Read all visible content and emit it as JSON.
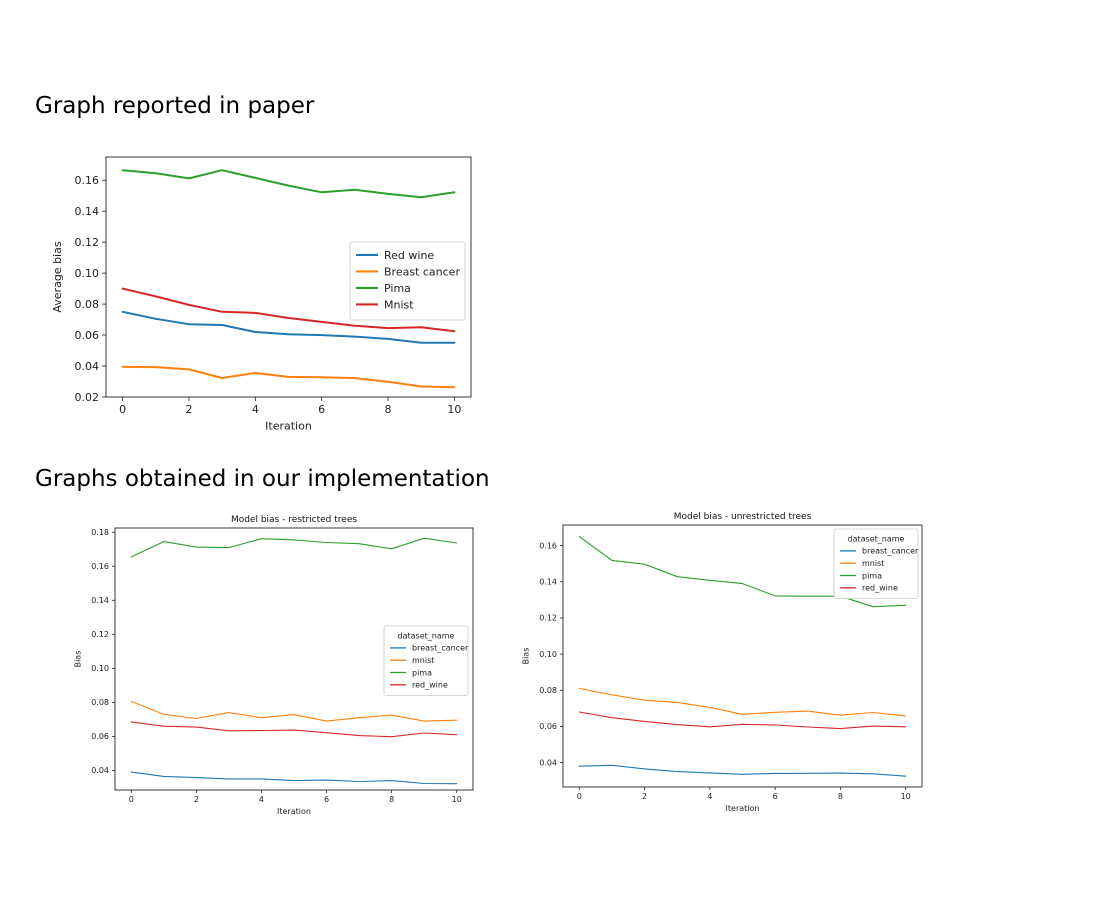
{
  "headings": {
    "reported": "Graph reported in paper",
    "obtained": "Graphs  obtained in our implementation"
  },
  "chart_data": [
    {
      "type": "line",
      "title": "",
      "xlabel": "Iteration",
      "ylabel": "Average bias",
      "xlim": [
        -0.5,
        10.5
      ],
      "ylim": [
        0.02,
        0.175
      ],
      "xticks": [
        0,
        2,
        4,
        6,
        8,
        10
      ],
      "xtick_labels": [
        "0",
        "2",
        "4",
        "6",
        "8",
        "10"
      ],
      "yticks": [
        0.02,
        0.04,
        0.06,
        0.08,
        0.1,
        0.12,
        0.14,
        0.16
      ],
      "ytick_labels": [
        "0.02",
        "0.04",
        "0.06",
        "0.08",
        "0.10",
        "0.12",
        "0.14",
        "0.16"
      ],
      "grid": false,
      "legend": {
        "placement": "center-right",
        "title": ""
      },
      "x": [
        0,
        1,
        2,
        3,
        4,
        5,
        6,
        7,
        8,
        9,
        10
      ],
      "series": [
        {
          "name": "Red wine",
          "color": "#1f77b4",
          "values": [
            0.075,
            0.0705,
            0.067,
            0.0665,
            0.062,
            0.0605,
            0.06,
            0.059,
            0.0575,
            0.055,
            0.055
          ]
        },
        {
          "name": "Breast cancer",
          "color": "#ff7f0e",
          "values": [
            0.0395,
            0.0393,
            0.0378,
            0.0323,
            0.0355,
            0.033,
            0.0328,
            0.0322,
            0.0298,
            0.0268,
            0.0263
          ]
        },
        {
          "name": "Pima",
          "color": "#2ca02c",
          "values": [
            0.1665,
            0.1645,
            0.1612,
            0.1665,
            0.1615,
            0.1565,
            0.1522,
            0.1538,
            0.1512,
            0.149,
            0.1522
          ]
        },
        {
          "name": "Mnist",
          "color": "#d62728",
          "values": [
            0.09,
            0.085,
            0.0795,
            0.075,
            0.0743,
            0.071,
            0.0685,
            0.066,
            0.0645,
            0.065,
            0.0625
          ]
        }
      ]
    },
    {
      "type": "line",
      "title": "Model bias - restricted trees",
      "xlabel": "Iteration",
      "ylabel": "Bias",
      "xlim": [
        -0.5,
        10.5
      ],
      "ylim": [
        0.0285,
        0.1825
      ],
      "xticks": [
        0,
        2,
        4,
        6,
        8,
        10
      ],
      "xtick_labels": [
        "0",
        "2",
        "4",
        "6",
        "8",
        "10"
      ],
      "yticks": [
        0.04,
        0.06,
        0.08,
        0.1,
        0.12,
        0.14,
        0.16,
        0.18
      ],
      "ytick_labels": [
        "0.04",
        "0.06",
        "0.08",
        "0.10",
        "0.12",
        "0.14",
        "0.16",
        "0.18"
      ],
      "grid": false,
      "legend": {
        "placement": "center-right",
        "title": "dataset_name"
      },
      "x": [
        0,
        1,
        2,
        3,
        4,
        5,
        6,
        7,
        8,
        9,
        10
      ],
      "series": [
        {
          "name": "breast_cancer",
          "color": "#1f77b4",
          "values": [
            0.039,
            0.0365,
            0.0358,
            0.035,
            0.035,
            0.034,
            0.0343,
            0.0335,
            0.034,
            0.0323,
            0.0322
          ]
        },
        {
          "name": "mnist",
          "color": "#ff7f0e",
          "values": [
            0.0805,
            0.073,
            0.0705,
            0.074,
            0.071,
            0.0728,
            0.069,
            0.071,
            0.0725,
            0.069,
            0.0695
          ]
        },
        {
          "name": "pima",
          "color": "#2ca02c",
          "values": [
            0.1655,
            0.1745,
            0.1713,
            0.171,
            0.1762,
            0.1755,
            0.174,
            0.1733,
            0.1703,
            0.1765,
            0.1737
          ]
        },
        {
          "name": "red_wine",
          "color": "#d62728",
          "values": [
            0.0685,
            0.066,
            0.0655,
            0.0633,
            0.0635,
            0.0637,
            0.0622,
            0.0605,
            0.0598,
            0.062,
            0.061
          ]
        }
      ]
    },
    {
      "type": "line",
      "title": "Model bias - unrestricted trees",
      "xlabel": "Iteration",
      "ylabel": "Bias",
      "xlim": [
        -0.5,
        10.5
      ],
      "ylim": [
        0.0265,
        0.1714
      ],
      "xticks": [
        0,
        2,
        4,
        6,
        8,
        10
      ],
      "xtick_labels": [
        "0",
        "2",
        "4",
        "6",
        "8",
        "10"
      ],
      "yticks": [
        0.04,
        0.06,
        0.08,
        0.1,
        0.12,
        0.14,
        0.16
      ],
      "ytick_labels": [
        "0.04",
        "0.06",
        "0.08",
        "0.10",
        "0.12",
        "0.14",
        "0.16"
      ],
      "grid": false,
      "legend": {
        "placement": "top-right",
        "title": "dataset_name"
      },
      "x": [
        0,
        1,
        2,
        3,
        4,
        5,
        6,
        7,
        8,
        9,
        10
      ],
      "series": [
        {
          "name": "breast_cancer",
          "color": "#1f77b4",
          "values": [
            0.038,
            0.0385,
            0.0365,
            0.035,
            0.0343,
            0.0335,
            0.034,
            0.0341,
            0.0342,
            0.0338,
            0.0325
          ]
        },
        {
          "name": "mnist",
          "color": "#ff7f0e",
          "values": [
            0.081,
            0.0775,
            0.0745,
            0.0733,
            0.0705,
            0.0667,
            0.0678,
            0.0685,
            0.0662,
            0.0677,
            0.0658
          ]
        },
        {
          "name": "pima",
          "color": "#2ca02c",
          "values": [
            0.165,
            0.1518,
            0.1497,
            0.1428,
            0.1408,
            0.139,
            0.1322,
            0.132,
            0.132,
            0.1262,
            0.127
          ]
        },
        {
          "name": "red_wine",
          "color": "#d62728",
          "values": [
            0.068,
            0.0648,
            0.0628,
            0.061,
            0.0598,
            0.0612,
            0.0608,
            0.0597,
            0.0588,
            0.0602,
            0.0598
          ]
        }
      ]
    }
  ]
}
